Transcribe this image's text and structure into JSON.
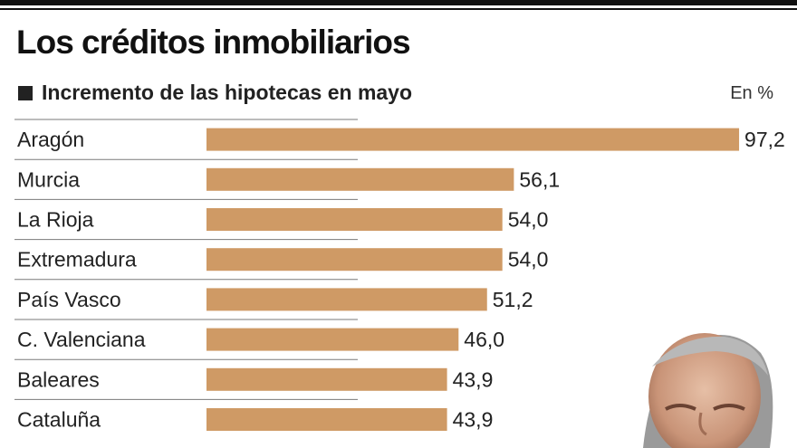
{
  "header": {
    "title": "Los créditos inmobiliarios",
    "subtitle": "Incremento de las hipotecas en mayo",
    "unit": "En %"
  },
  "colors": {
    "bar": "#cf9a65",
    "separator": "#7a7a7a",
    "rule": "#111111"
  },
  "chart_data": {
    "type": "bar",
    "orientation": "horizontal",
    "categories": [
      "Aragón",
      "Murcia",
      "La Rioja",
      "Extremadura",
      "País Vasco",
      "C. Valenciana",
      "Baleares",
      "Cataluña"
    ],
    "values": [
      97.2,
      56.1,
      54.0,
      54.0,
      51.2,
      46.0,
      43.9,
      43.9
    ],
    "value_labels": [
      "97,2",
      "56,1",
      "54,0",
      "54,0",
      "51,2",
      "46,0",
      "43,9",
      "43,9"
    ],
    "title": "Los créditos inmobiliarios",
    "subtitle": "Incremento de las hipotecas en mayo",
    "xlabel": "",
    "ylabel": "",
    "unit": "En %",
    "xlim": [
      0,
      100
    ],
    "grid": false,
    "legend": "none"
  }
}
